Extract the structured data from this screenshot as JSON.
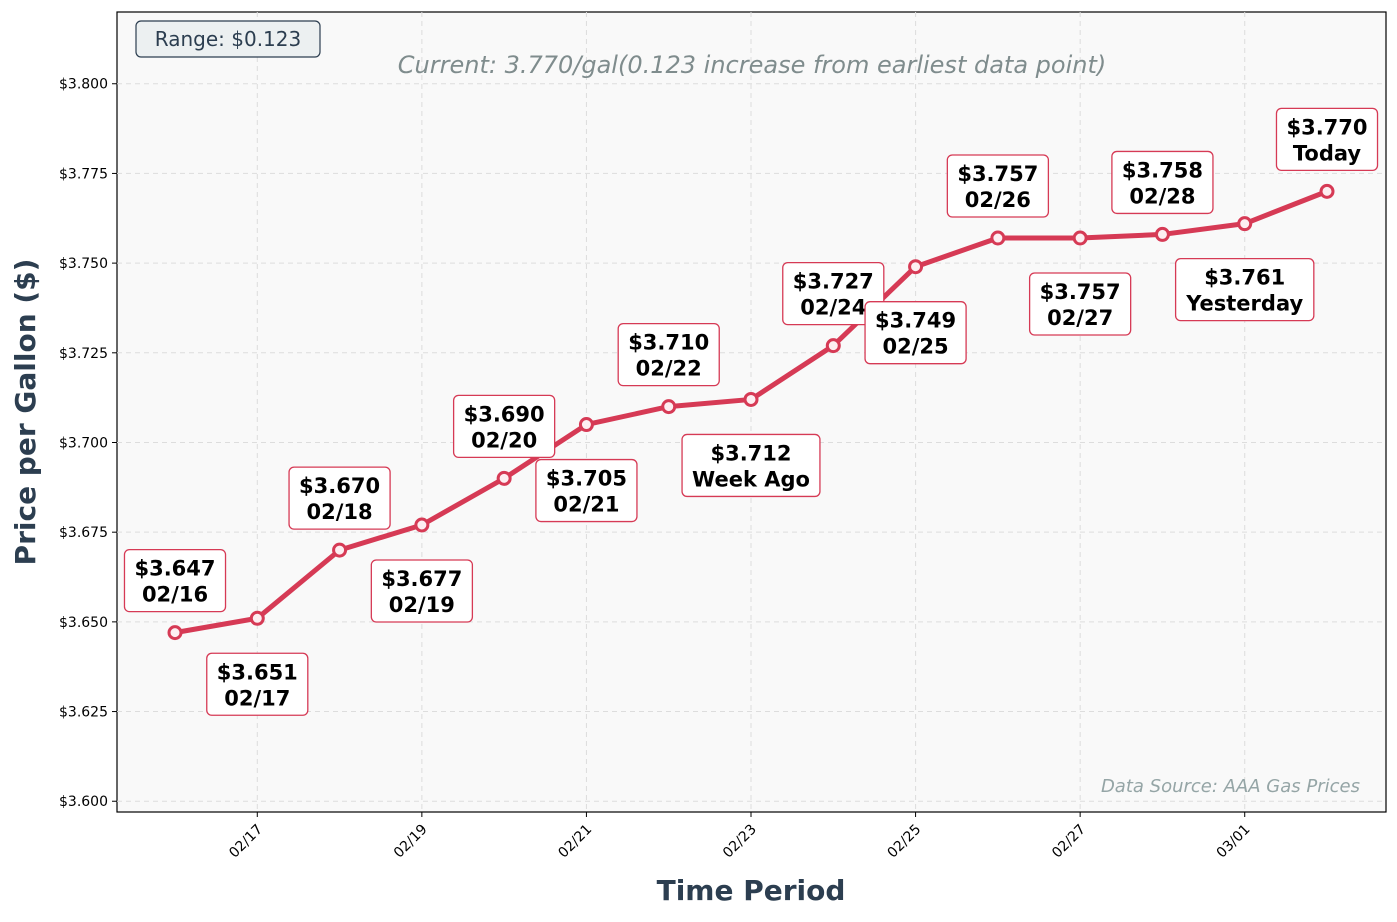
{
  "chart_data": {
    "type": "line",
    "title": "Current: 3.770/gal(0.123 increase from earliest data point)",
    "xlabel": "Time Period",
    "ylabel": "Price per Gallon ($)",
    "x": [
      "02/16",
      "02/17",
      "02/18",
      "02/19",
      "02/20",
      "02/21",
      "02/22",
      "02/23",
      "02/24",
      "02/25",
      "02/26",
      "02/27",
      "02/28",
      "03/01",
      "03/02"
    ],
    "series": [
      {
        "values": [
          3.647,
          3.651,
          3.67,
          3.677,
          3.69,
          3.705,
          3.71,
          3.712,
          3.727,
          3.749,
          3.757,
          3.757,
          3.758,
          3.761,
          3.77
        ],
        "color": "#d63a55"
      }
    ],
    "annotations": [
      {
        "price": "$3.647",
        "label": "02/16"
      },
      {
        "price": "$3.651",
        "label": "02/17"
      },
      {
        "price": "$3.670",
        "label": "02/18"
      },
      {
        "price": "$3.677",
        "label": "02/19"
      },
      {
        "price": "$3.690",
        "label": "02/20"
      },
      {
        "price": "$3.705",
        "label": "02/21"
      },
      {
        "price": "$3.710",
        "label": "02/22"
      },
      {
        "price": "$3.712",
        "label": "Week Ago"
      },
      {
        "price": "$3.727",
        "label": "02/24"
      },
      {
        "price": "$3.749",
        "label": "02/25"
      },
      {
        "price": "$3.757",
        "label": "02/26"
      },
      {
        "price": "$3.757",
        "label": "02/27"
      },
      {
        "price": "$3.758",
        "label": "02/28"
      },
      {
        "price": "$3.761",
        "label": "Yesterday"
      },
      {
        "price": "$3.770",
        "label": "Today"
      }
    ],
    "xticks": [
      "02/17",
      "02/19",
      "02/21",
      "02/23",
      "02/25",
      "02/27",
      "03/01"
    ],
    "yticks": [
      3.6,
      3.625,
      3.65,
      3.675,
      3.7,
      3.725,
      3.75,
      3.775,
      3.8
    ],
    "ytick_labels": [
      "$3.600",
      "$3.625",
      "$3.650",
      "$3.675",
      "$3.700",
      "$3.725",
      "$3.750",
      "$3.775",
      "$3.800"
    ],
    "ylim": [
      3.597,
      3.82
    ],
    "grid": true,
    "range_box": "Range: $0.123",
    "source_note": "Data Source: AAA Gas Prices",
    "colors": {
      "line": "#d63a55",
      "axis_label": "#2c3e50",
      "title": "#7f8c8d",
      "plot_bg": "#f9f9f9"
    }
  }
}
